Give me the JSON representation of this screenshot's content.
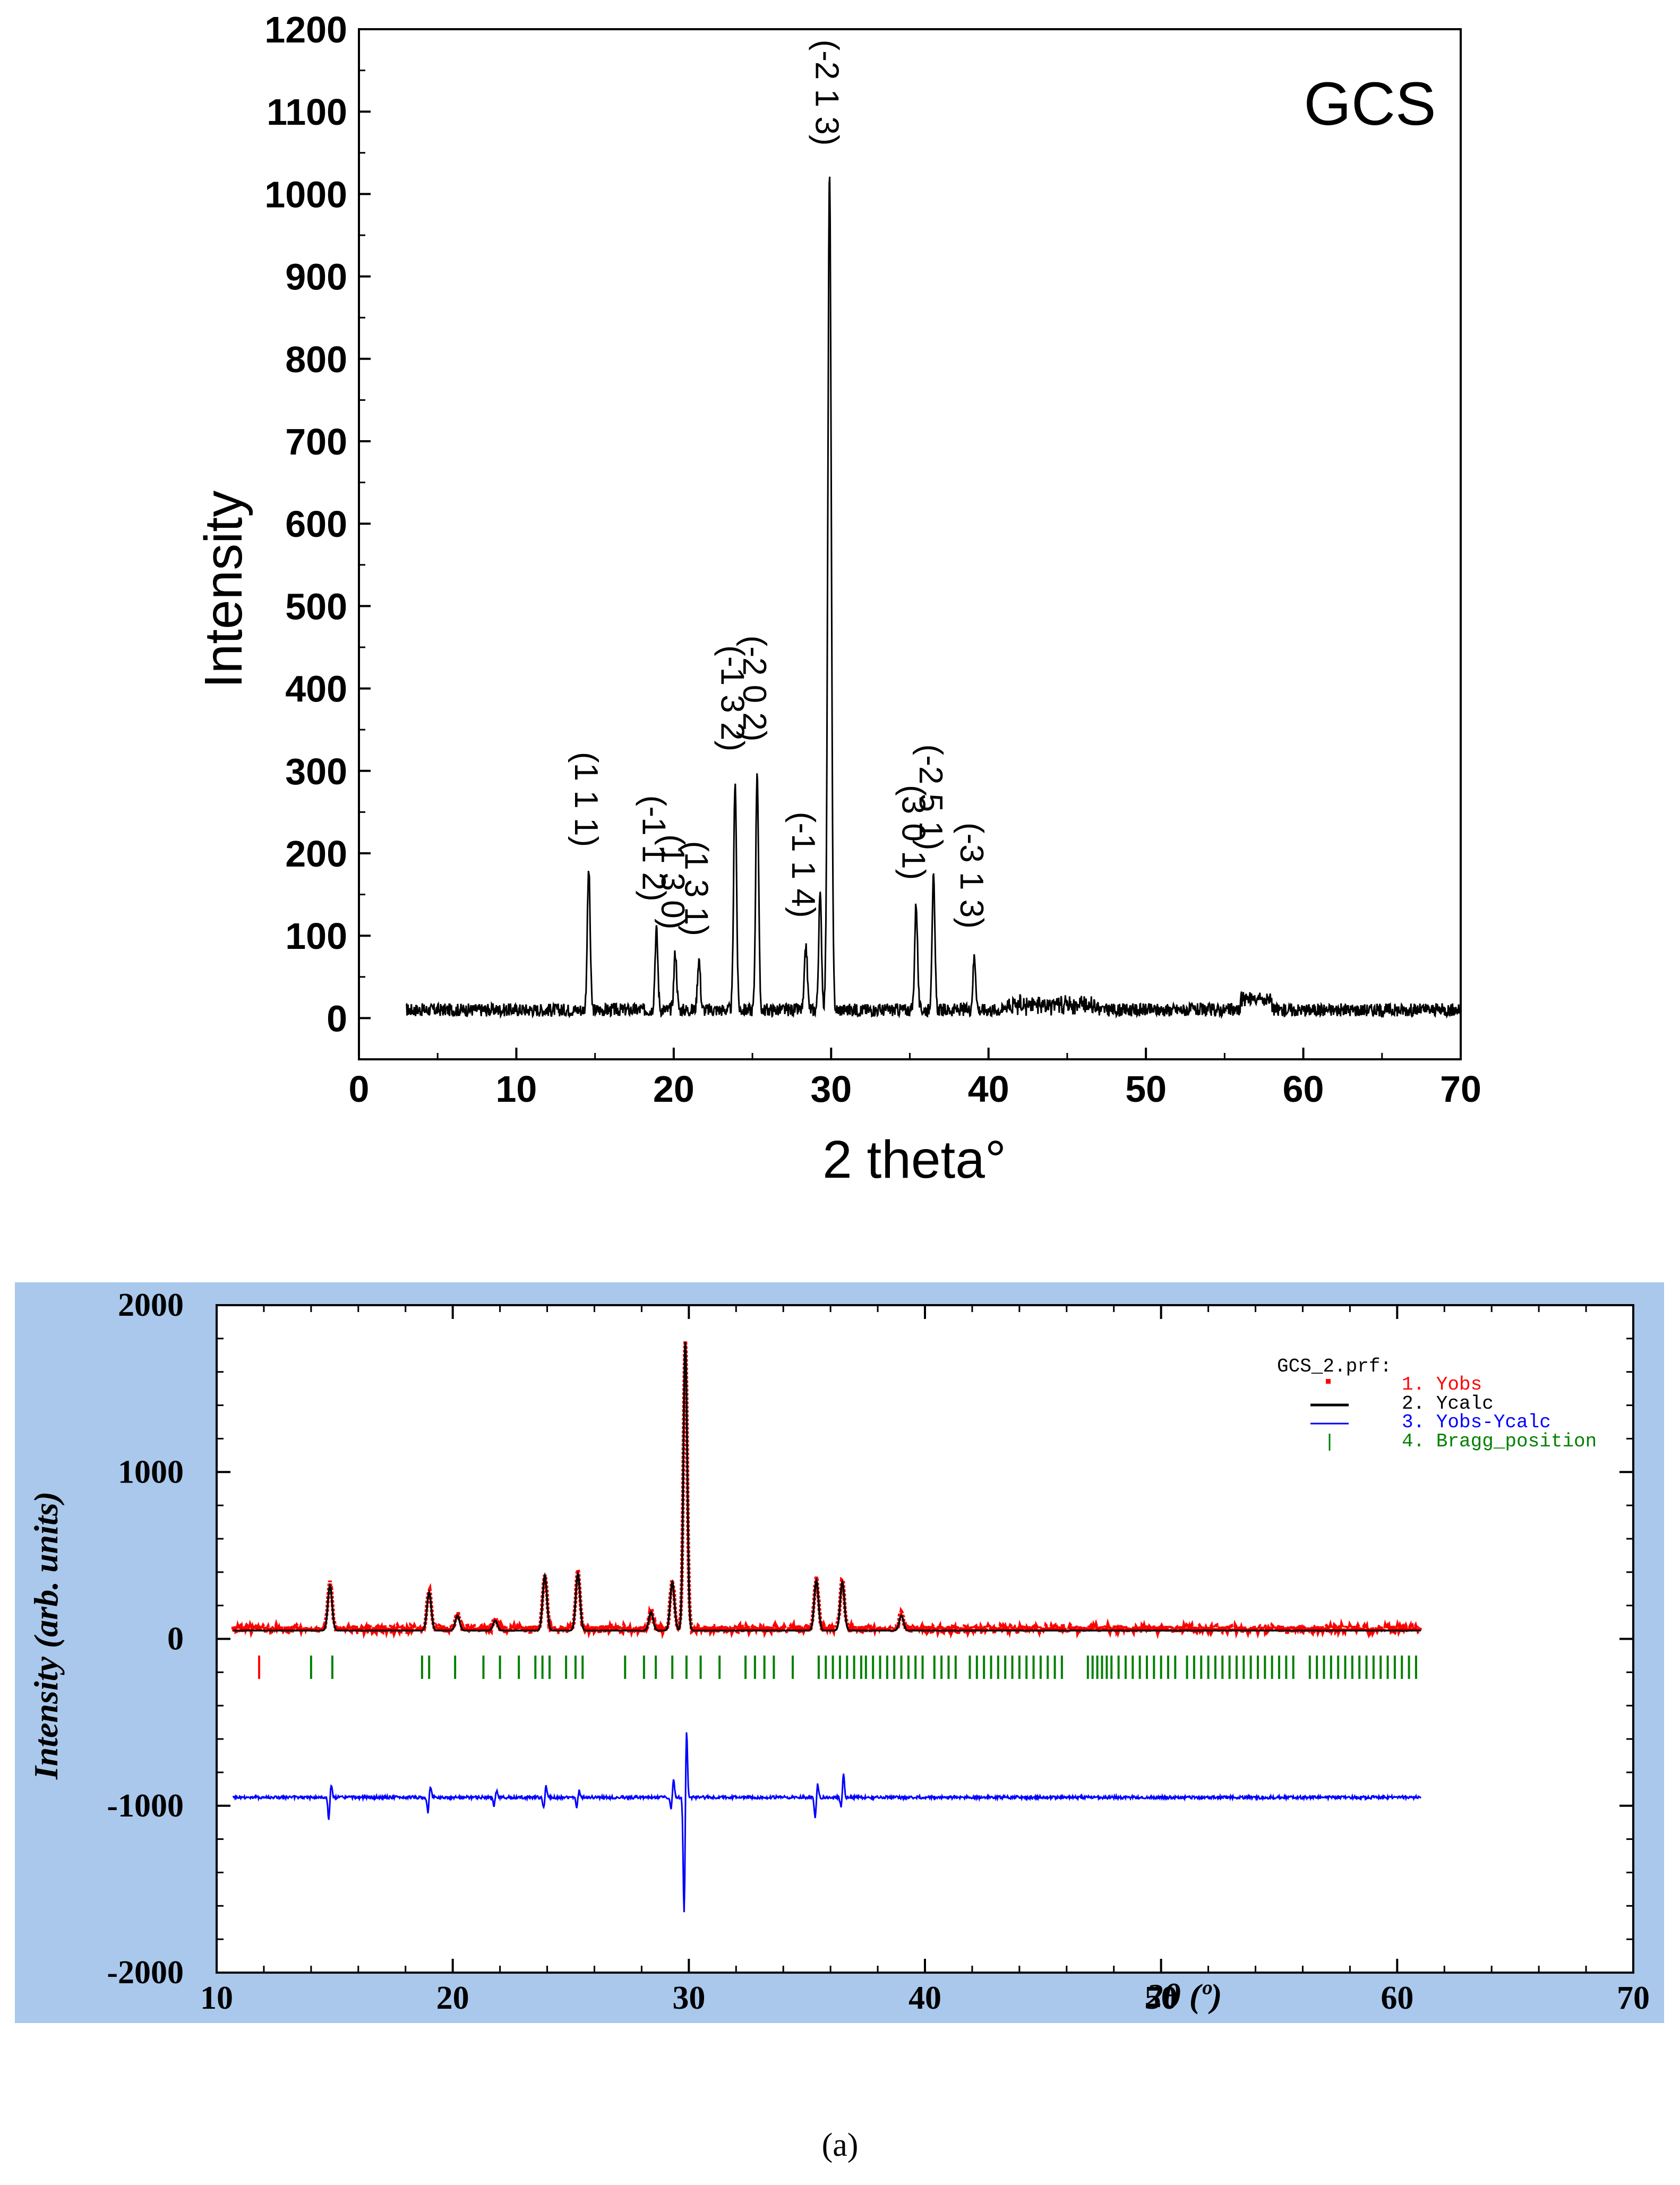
{
  "chart_data": [
    {
      "type": "line",
      "title": "GCS",
      "xlabel": "2 theta°",
      "ylabel": "Intensity",
      "xlim": [
        0,
        70
      ],
      "ylim": [
        -50,
        1200
      ],
      "xticks": [
        0,
        10,
        20,
        30,
        40,
        50,
        60,
        70
      ],
      "yticks": [
        0,
        100,
        200,
        300,
        400,
        500,
        600,
        700,
        800,
        900,
        1000,
        1100,
        1200
      ],
      "baseline": 10,
      "x_range": [
        3,
        70
      ],
      "peaks": [
        {
          "x": 14.6,
          "y": 180,
          "label": "(1 1 1)"
        },
        {
          "x": 18.9,
          "y": 108,
          "label": "(-1 1 2)"
        },
        {
          "x": 20.1,
          "y": 80,
          "label": "(1 3 0)"
        },
        {
          "x": 21.6,
          "y": 72,
          "label": "(1 3 1)"
        },
        {
          "x": 23.9,
          "y": 290,
          "label": "(-1 3 2)"
        },
        {
          "x": 25.3,
          "y": 302,
          "label": "(-2 0 2)"
        },
        {
          "x": 28.4,
          "y": 88,
          "label": "(-1 1 4)"
        },
        {
          "x": 29.3,
          "y": 150,
          "label": ""
        },
        {
          "x": 29.9,
          "y": 1025,
          "label": "(-2 1 3)"
        },
        {
          "x": 35.4,
          "y": 140,
          "label": "(3 0 1)"
        },
        {
          "x": 36.5,
          "y": 170,
          "label": "(-2 5 1)"
        },
        {
          "x": 39.1,
          "y": 75,
          "label": "(-3 1 3)"
        }
      ]
    },
    {
      "type": "line",
      "title": "",
      "xlabel": "2θ (º)",
      "ylabel": "Intensity (arb. units)",
      "xlim": [
        10,
        70
      ],
      "ylim": [
        -2000,
        2000
      ],
      "xticks": [
        10,
        20,
        30,
        40,
        50,
        60,
        70
      ],
      "yticks": [
        2000,
        1000,
        0,
        -1000,
        -2000
      ],
      "x_range": [
        10.7,
        61
      ],
      "diff_offset": -950,
      "legend_file": "GCS_2.prf:",
      "series": [
        {
          "name": "1.  Yobs",
          "color": "#ff0000"
        },
        {
          "name": "2.  Ycalc",
          "color": "#000000"
        },
        {
          "name": "3.  Yobs-Ycalc",
          "color": "#0000ff"
        },
        {
          "name": "4.  Bragg_position",
          "color": "#008000"
        }
      ],
      "peaks": [
        {
          "x": 14.8,
          "y": 270
        },
        {
          "x": 19.0,
          "y": 230
        },
        {
          "x": 20.2,
          "y": 90
        },
        {
          "x": 21.8,
          "y": 60
        },
        {
          "x": 23.9,
          "y": 330
        },
        {
          "x": 25.3,
          "y": 340
        },
        {
          "x": 28.4,
          "y": 110
        },
        {
          "x": 29.3,
          "y": 290
        },
        {
          "x": 29.85,
          "y": 1730
        },
        {
          "x": 35.4,
          "y": 300
        },
        {
          "x": 36.5,
          "y": 290
        },
        {
          "x": 39.0,
          "y": 90
        }
      ],
      "diff_peaks": [
        {
          "x": 14.8,
          "d": 80,
          "u": -130
        },
        {
          "x": 19.0,
          "d": 70,
          "u": -90
        },
        {
          "x": 21.8,
          "d": 40,
          "u": -50
        },
        {
          "x": 23.9,
          "d": 70,
          "u": -70
        },
        {
          "x": 25.3,
          "d": 40,
          "u": -60
        },
        {
          "x": 29.3,
          "d": 110,
          "u": -70
        },
        {
          "x": 29.85,
          "d": 420,
          "u": -700
        },
        {
          "x": 35.4,
          "d": 80,
          "u": -120
        },
        {
          "x": 36.5,
          "d": 140,
          "u": -60
        }
      ],
      "bragg_positions": [
        11.8,
        14.0,
        14.9,
        18.7,
        19.0,
        20.1,
        21.3,
        22.0,
        22.8,
        23.5,
        23.8,
        24.1,
        24.8,
        25.2,
        25.5,
        27.3,
        28.1,
        28.6,
        29.3,
        29.9,
        30.5,
        31.3,
        32.4,
        32.8,
        33.2,
        33.6,
        34.4,
        35.5,
        35.8,
        36.1,
        36.4,
        36.7,
        37.0,
        37.3,
        37.5,
        37.8,
        38.1,
        38.4,
        38.7,
        39.0,
        39.3,
        39.6,
        39.9,
        40.4,
        40.7,
        41.0,
        41.3,
        41.9,
        42.2,
        42.5,
        42.8,
        43.1,
        43.4,
        43.7,
        44.0,
        44.3,
        44.6,
        44.9,
        45.2,
        45.5,
        45.8,
        46.9,
        47.1,
        47.3,
        47.5,
        47.7,
        47.9,
        48.2,
        48.5,
        48.8,
        49.1,
        49.4,
        49.7,
        50.0,
        50.3,
        50.6,
        51.1,
        51.4,
        51.7,
        52.0,
        52.3,
        52.6,
        52.9,
        53.2,
        53.5,
        53.8,
        54.1,
        54.4,
        54.7,
        55.0,
        55.3,
        55.6,
        56.3,
        56.6,
        56.9,
        57.2,
        57.5,
        57.8,
        58.1,
        58.4,
        58.7,
        59.0,
        59.3,
        59.6,
        59.9,
        60.2,
        60.5,
        60.8
      ]
    }
  ],
  "caption": "(a)",
  "colors": {
    "bottom_frame_bg": "#a9c8ec",
    "obs": "#ff0000",
    "calc": "#000000",
    "diff": "#0000ff",
    "bragg": "#008000"
  }
}
